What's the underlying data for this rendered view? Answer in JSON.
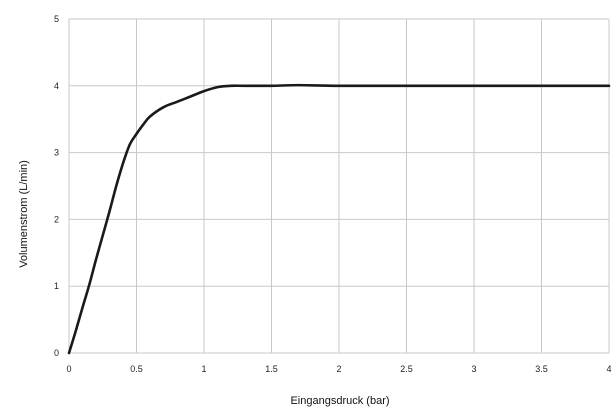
{
  "chart_data": {
    "type": "line",
    "title": "",
    "xlabel": "Eingangsdruck (bar)",
    "ylabel": "Volumenstrom (L/min)",
    "xlim": [
      0,
      4
    ],
    "ylim": [
      0,
      5
    ],
    "x_ticks": [
      "0",
      "0.5",
      "1",
      "1.5",
      "2",
      "2.5",
      "3",
      "3.5",
      "4"
    ],
    "y_ticks": [
      "0",
      "1",
      "2",
      "3",
      "4",
      "5"
    ],
    "grid": true,
    "legend": "none",
    "series": [
      {
        "x": [
          0,
          0.05,
          0.1,
          0.15,
          0.2,
          0.25,
          0.3,
          0.35,
          0.4,
          0.45,
          0.5,
          0.55,
          0.6,
          0.7,
          0.8,
          0.9,
          1.0,
          1.1,
          1.2,
          1.3,
          1.5,
          1.7,
          2.0,
          2.5,
          3.0,
          3.5,
          4.0
        ],
        "values": [
          0,
          0.33,
          0.68,
          1.02,
          1.4,
          1.76,
          2.12,
          2.5,
          2.84,
          3.12,
          3.28,
          3.42,
          3.54,
          3.68,
          3.76,
          3.84,
          3.92,
          3.98,
          4.0,
          4.0,
          4.0,
          4.01,
          4.0,
          4.0,
          4.0,
          4.0,
          4.0
        ],
        "color": "#1a1a1a"
      }
    ]
  }
}
